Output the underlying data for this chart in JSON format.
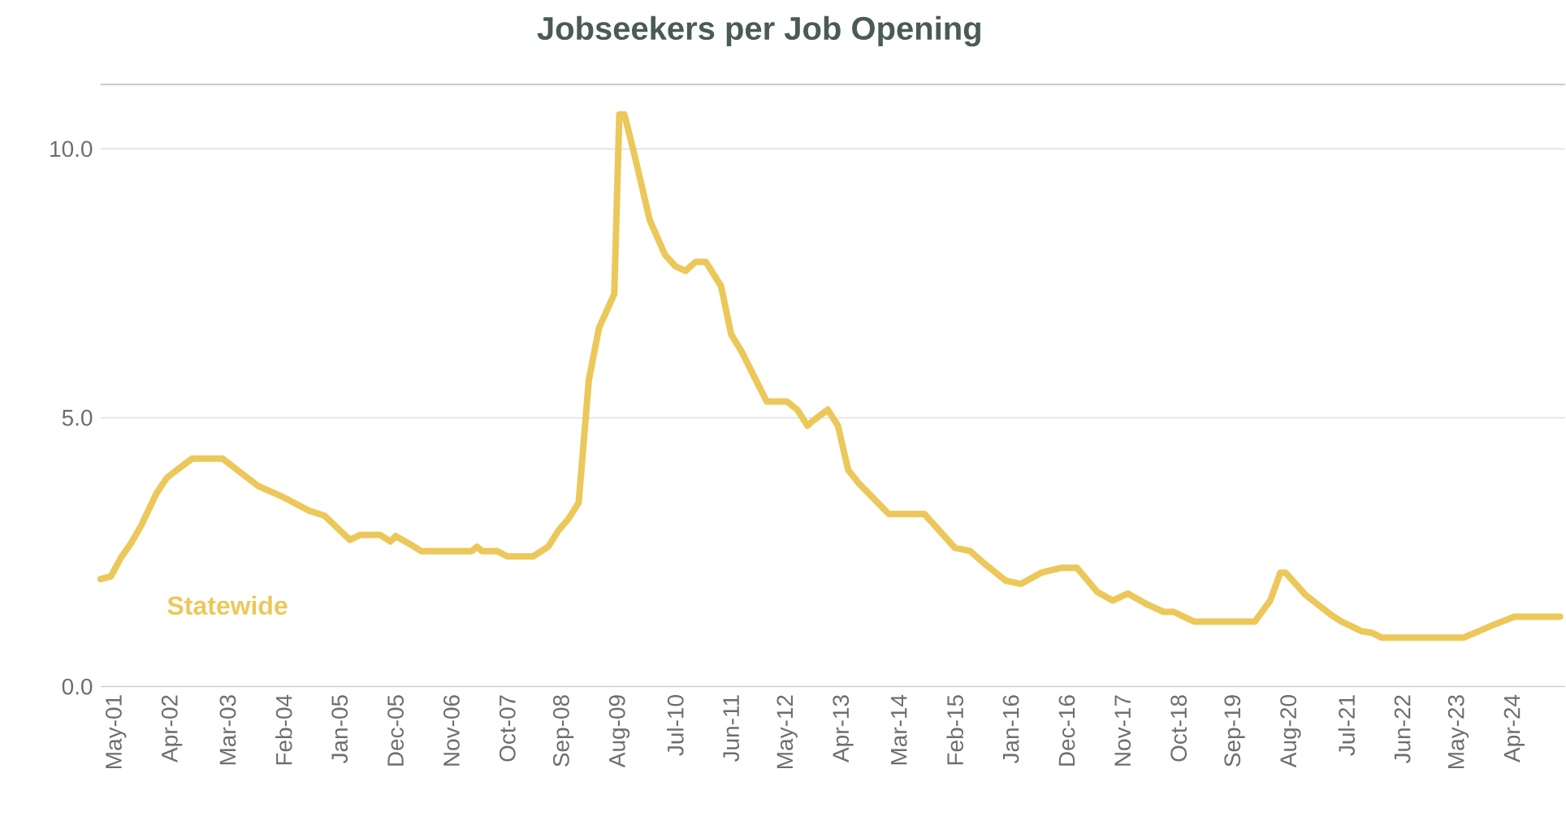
{
  "chart_data": {
    "type": "line",
    "title": "Jobseekers per Job Opening",
    "x": [
      "2001-02",
      "2001-04",
      "2001-06",
      "2001-08",
      "2001-10",
      "2002-01",
      "2002-03",
      "2002-05",
      "2002-08",
      "2003-02",
      "2003-04",
      "2003-09",
      "2004-02",
      "2004-07",
      "2004-10",
      "2005-02",
      "2005-03",
      "2005-05",
      "2005-09",
      "2005-11",
      "2005-12",
      "2006-03",
      "2006-05",
      "2007-03",
      "2007-04",
      "2007-05",
      "2007-08",
      "2007-10",
      "2008-03",
      "2008-06",
      "2008-08",
      "2008-10",
      "2008-12",
      "2009-02",
      "2009-04",
      "2009-07",
      "2009-08",
      "2009-09",
      "2009-11",
      "2010-02",
      "2010-05",
      "2010-07",
      "2010-09",
      "2010-11",
      "2011-01",
      "2011-04",
      "2011-06",
      "2011-08",
      "2012-01",
      "2012-05",
      "2012-07",
      "2012-09",
      "2012-10",
      "2013-01",
      "2013-03",
      "2013-05",
      "2013-07",
      "2014-01",
      "2014-08",
      "2015-02",
      "2015-05",
      "2015-08",
      "2015-12",
      "2016-03",
      "2016-07",
      "2016-11",
      "2017-02",
      "2017-06",
      "2017-09",
      "2017-12",
      "2018-04",
      "2018-07",
      "2018-09",
      "2019-01",
      "2020-01",
      "2020-04",
      "2020-06",
      "2020-07",
      "2020-11",
      "2021-04",
      "2021-06",
      "2021-10",
      "2021-12",
      "2022-02",
      "2023-06",
      "2023-09",
      "2023-12",
      "2024-04",
      "2025-01"
    ],
    "series": [
      {
        "name": "Statewide",
        "color": "#ecc85a",
        "values": [
          2.0,
          2.05,
          2.4,
          2.67,
          3.0,
          3.6,
          3.88,
          4.03,
          4.24,
          4.24,
          4.09,
          3.73,
          3.52,
          3.27,
          3.18,
          2.82,
          2.73,
          2.82,
          2.82,
          2.7,
          2.8,
          2.64,
          2.52,
          2.52,
          2.6,
          2.52,
          2.52,
          2.42,
          2.42,
          2.6,
          2.9,
          3.12,
          3.42,
          5.7,
          6.67,
          7.3,
          10.64,
          10.64,
          9.88,
          8.67,
          8.03,
          7.82,
          7.73,
          7.9,
          7.9,
          7.45,
          6.55,
          6.24,
          5.3,
          5.3,
          5.15,
          4.85,
          4.94,
          5.15,
          4.85,
          4.03,
          3.79,
          3.21,
          3.21,
          2.58,
          2.52,
          2.27,
          1.97,
          1.91,
          2.12,
          2.21,
          2.21,
          1.76,
          1.6,
          1.73,
          1.52,
          1.39,
          1.39,
          1.21,
          1.21,
          1.6,
          2.12,
          2.12,
          1.7,
          1.33,
          1.21,
          1.03,
          1.0,
          0.91,
          0.91,
          1.03,
          1.15,
          1.3,
          1.3
        ]
      }
    ],
    "xlim": [
      "2001-02",
      "2025-02"
    ],
    "xticks": [
      {
        "value": "2001-05",
        "label": "May-01"
      },
      {
        "value": "2002-04",
        "label": "Apr-02"
      },
      {
        "value": "2003-03",
        "label": "Mar-03"
      },
      {
        "value": "2004-02",
        "label": "Feb-04"
      },
      {
        "value": "2005-01",
        "label": "Jan-05"
      },
      {
        "value": "2005-12",
        "label": "Dec-05"
      },
      {
        "value": "2006-11",
        "label": "Nov-06"
      },
      {
        "value": "2007-10",
        "label": "Oct-07"
      },
      {
        "value": "2008-09",
        "label": "Sep-08"
      },
      {
        "value": "2009-08",
        "label": "Aug-09"
      },
      {
        "value": "2010-07",
        "label": "Jul-10"
      },
      {
        "value": "2011-06",
        "label": "Jun-11"
      },
      {
        "value": "2012-05",
        "label": "May-12"
      },
      {
        "value": "2013-04",
        "label": "Apr-13"
      },
      {
        "value": "2014-03",
        "label": "Mar-14"
      },
      {
        "value": "2015-02",
        "label": "Feb-15"
      },
      {
        "value": "2016-01",
        "label": "Jan-16"
      },
      {
        "value": "2016-12",
        "label": "Dec-16"
      },
      {
        "value": "2017-11",
        "label": "Nov-17"
      },
      {
        "value": "2018-10",
        "label": "Oct-18"
      },
      {
        "value": "2019-09",
        "label": "Sep-19"
      },
      {
        "value": "2020-08",
        "label": "Aug-20"
      },
      {
        "value": "2021-07",
        "label": "Jul-21"
      },
      {
        "value": "2022-06",
        "label": "Jun-22"
      },
      {
        "value": "2023-05",
        "label": "May-23"
      },
      {
        "value": "2024-04",
        "label": "Apr-24"
      }
    ],
    "ylim": [
      0,
      11.2
    ],
    "yticks": [
      {
        "value": 0,
        "label": "0.0"
      },
      {
        "value": 5,
        "label": "5.0"
      },
      {
        "value": 10,
        "label": "10.0"
      }
    ],
    "grid": "y",
    "marker": "none",
    "line_style": "solid"
  }
}
